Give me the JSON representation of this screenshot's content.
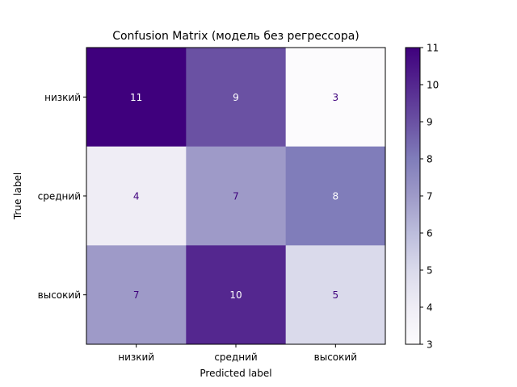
{
  "chart_data": {
    "type": "heatmap",
    "title": "Confusion Matrix (модель без регрессора)",
    "xlabel": "Predicted label",
    "ylabel": "True label",
    "x_categories": [
      "низкий",
      "средний",
      "высокий"
    ],
    "y_categories": [
      "низкий",
      "средний",
      "высокий"
    ],
    "values": [
      [
        11,
        9,
        3
      ],
      [
        4,
        7,
        8
      ],
      [
        7,
        10,
        5
      ]
    ],
    "colorbar": {
      "min": 3,
      "max": 11,
      "ticks": [
        3,
        4,
        5,
        6,
        7,
        8,
        9,
        10,
        11
      ]
    },
    "colormap": "Purples",
    "grid": false
  },
  "colors": {
    "low": "#fcfbfd",
    "high": "#3f007d",
    "text_light": "#ffffff",
    "text_dark": "#3f007d"
  }
}
